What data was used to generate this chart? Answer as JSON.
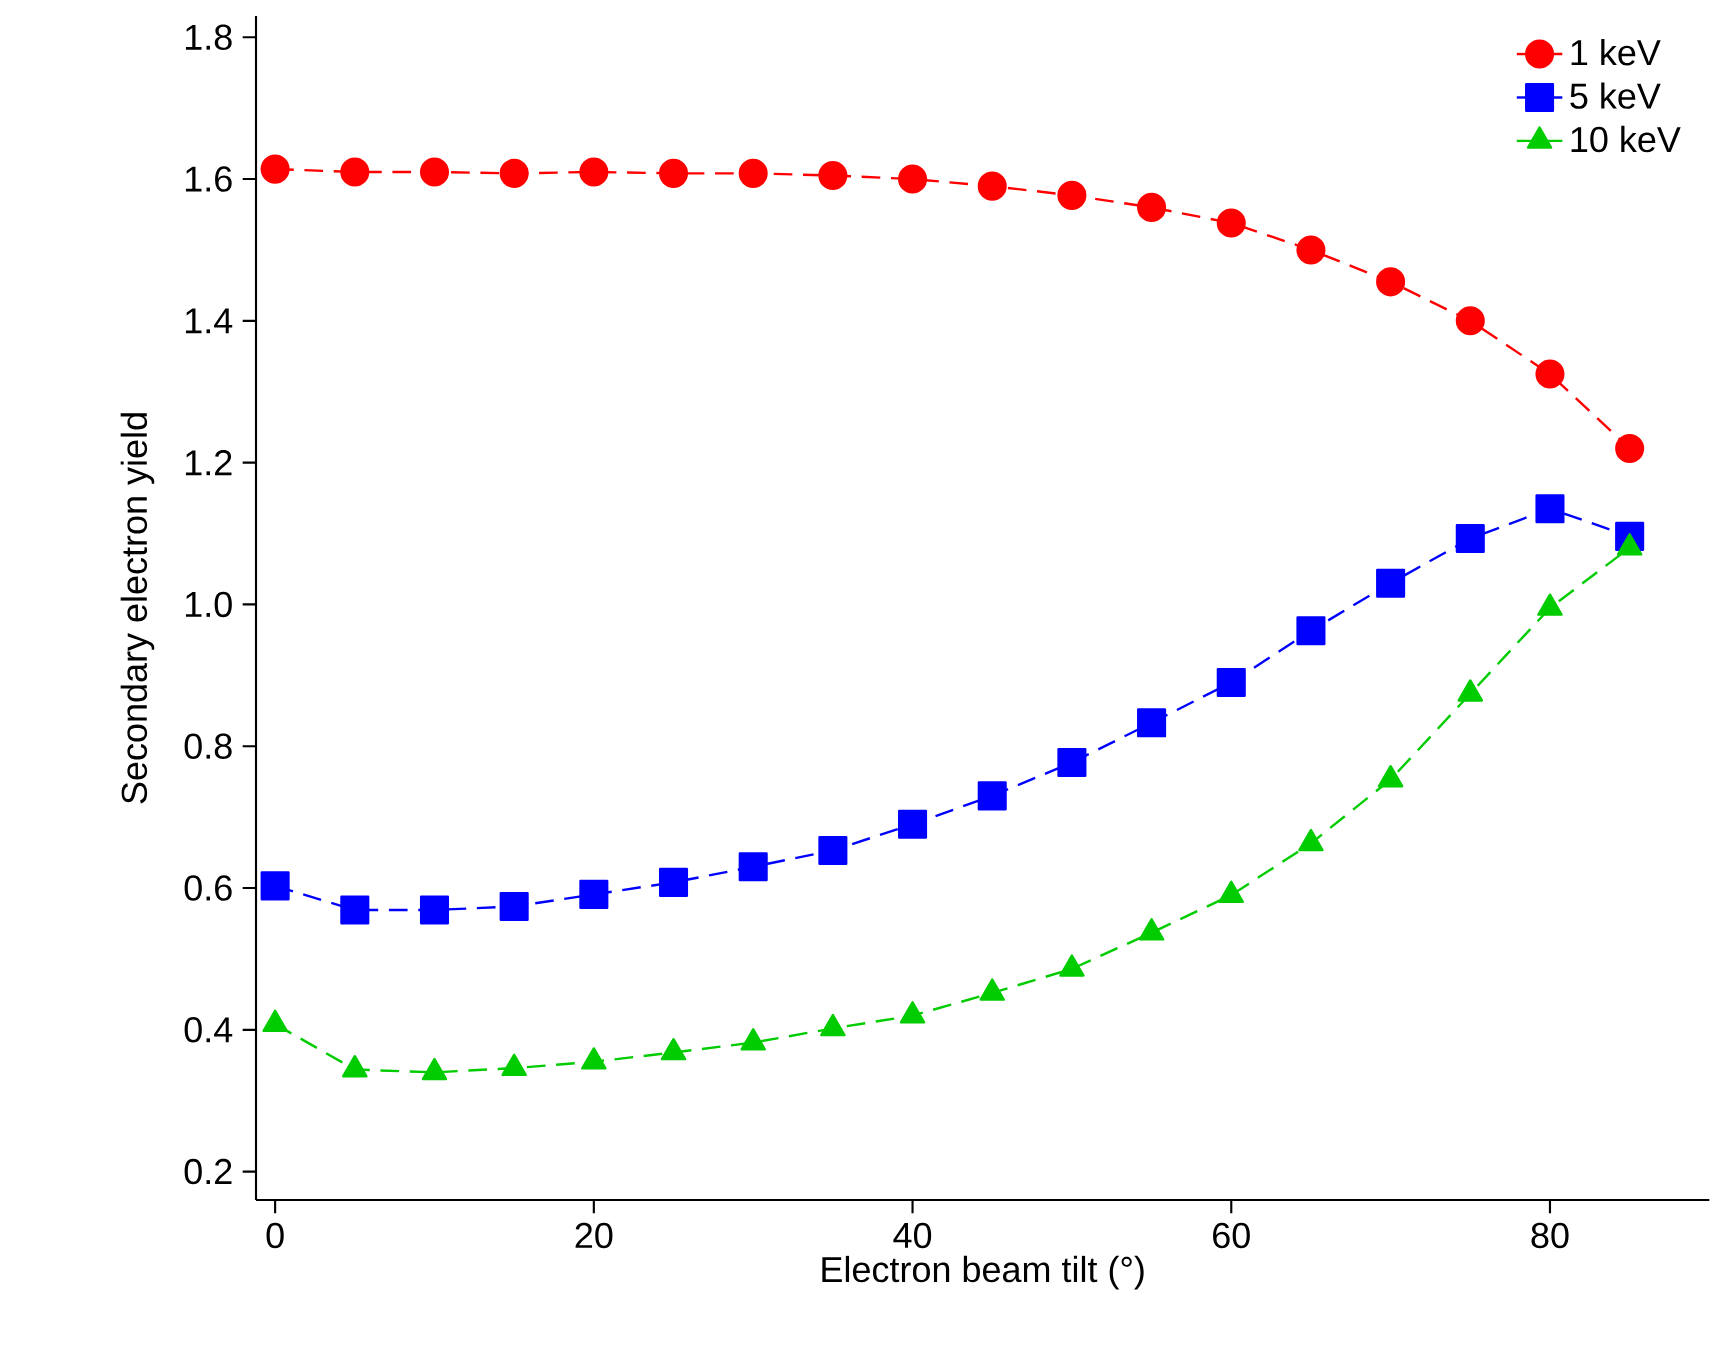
{
  "chart_data": {
    "type": "line",
    "xlabel": "Electron beam tilt (°)",
    "ylabel": "Secondary electron yield",
    "x": [
      0,
      5,
      10,
      15,
      20,
      25,
      30,
      35,
      40,
      45,
      50,
      55,
      60,
      65,
      70,
      75,
      80,
      85
    ],
    "series": [
      {
        "name": "1 keV",
        "color": "#ff0000",
        "marker": "circle",
        "values": [
          1.614,
          1.61,
          1.61,
          1.608,
          1.61,
          1.608,
          1.608,
          1.605,
          1.6,
          1.59,
          1.577,
          1.56,
          1.538,
          1.5,
          1.455,
          1.4,
          1.325,
          1.22
        ]
      },
      {
        "name": "5 keV",
        "color": "#0000ff",
        "marker": "square",
        "values": [
          0.603,
          0.569,
          0.569,
          0.574,
          0.591,
          0.608,
          0.63,
          0.653,
          0.69,
          0.73,
          0.777,
          0.833,
          0.89,
          0.963,
          1.03,
          1.093,
          1.135,
          1.096
        ]
      },
      {
        "name": "10 keV",
        "color": "#00cc00",
        "marker": "triangle",
        "values": [
          0.408,
          0.344,
          0.34,
          0.346,
          0.355,
          0.368,
          0.382,
          0.402,
          0.42,
          0.452,
          0.486,
          0.537,
          0.59,
          0.663,
          0.753,
          0.874,
          0.995,
          1.08
        ]
      }
    ],
    "line_style": "dashed",
    "grid": false,
    "legend": "top right",
    "xlim": [
      -1.2,
      90
    ],
    "ylim": [
      0.16,
      1.83
    ],
    "xticks": [
      0,
      20,
      40,
      60,
      80
    ],
    "yticks": [
      0.2,
      0.4,
      0.6,
      0.8,
      {
        "value": 1.0,
        "label": "1.0"
      },
      1.2,
      1.4,
      1.6,
      1.8
    ]
  }
}
